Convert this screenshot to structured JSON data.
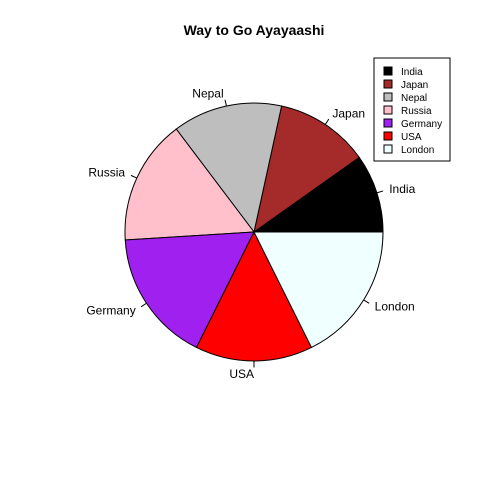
{
  "chart_data": {
    "type": "pie",
    "title": "Way to Go Ayayaashi",
    "slices": [
      {
        "label": "India",
        "value": 10,
        "color": "#000000"
      },
      {
        "label": "Japan",
        "value": 12,
        "color": "#A52A2A"
      },
      {
        "label": "Nepal",
        "value": 14,
        "color": "#BEBEBE"
      },
      {
        "label": "Russia",
        "value": 16,
        "color": "#FFC0CB"
      },
      {
        "label": "Germany",
        "value": 17,
        "color": "#A020F0"
      },
      {
        "label": "USA",
        "value": 15,
        "color": "#FF0000"
      },
      {
        "label": "London",
        "value": 18,
        "color": "#F0FFFF"
      }
    ],
    "legend": {
      "position": "top-right",
      "entries": [
        "India",
        "Japan",
        "Nepal",
        "Russia",
        "Germany",
        "USA",
        "London"
      ]
    }
  }
}
